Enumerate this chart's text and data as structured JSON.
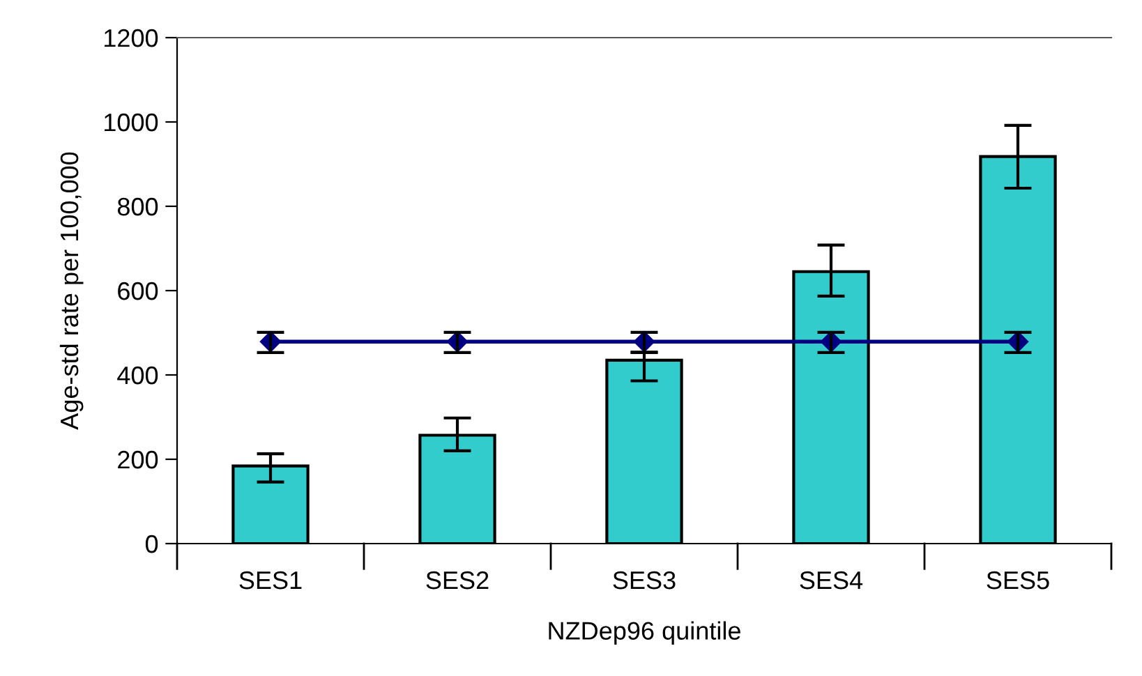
{
  "chart_data": {
    "type": "bar",
    "xlabel": "NZDep96 quintile",
    "ylabel": "Age-std rate per 100,000",
    "categories": [
      "SES1",
      "SES2",
      "SES3",
      "SES4",
      "SES5"
    ],
    "ylim": [
      0,
      1200
    ],
    "yticks": [
      0,
      200,
      400,
      600,
      800,
      1000,
      1200
    ],
    "grid": false,
    "series": [
      {
        "color": "#33cccc",
        "values": [
          184,
          257,
          435,
          645,
          918
        ],
        "errors": [
          [
            146,
            213
          ],
          [
            220,
            298
          ],
          [
            386,
            454
          ],
          [
            587,
            708
          ],
          [
            843,
            992
          ]
        ]
      },
      {
        "type": "line",
        "color": "#000080",
        "marker": "diamond",
        "values": [
          479,
          479,
          479,
          479,
          479
        ],
        "errors": [
          [
            453,
            501
          ],
          [
            453,
            501
          ],
          [
            453,
            501
          ],
          [
            453,
            501
          ],
          [
            453,
            501
          ]
        ]
      }
    ]
  }
}
